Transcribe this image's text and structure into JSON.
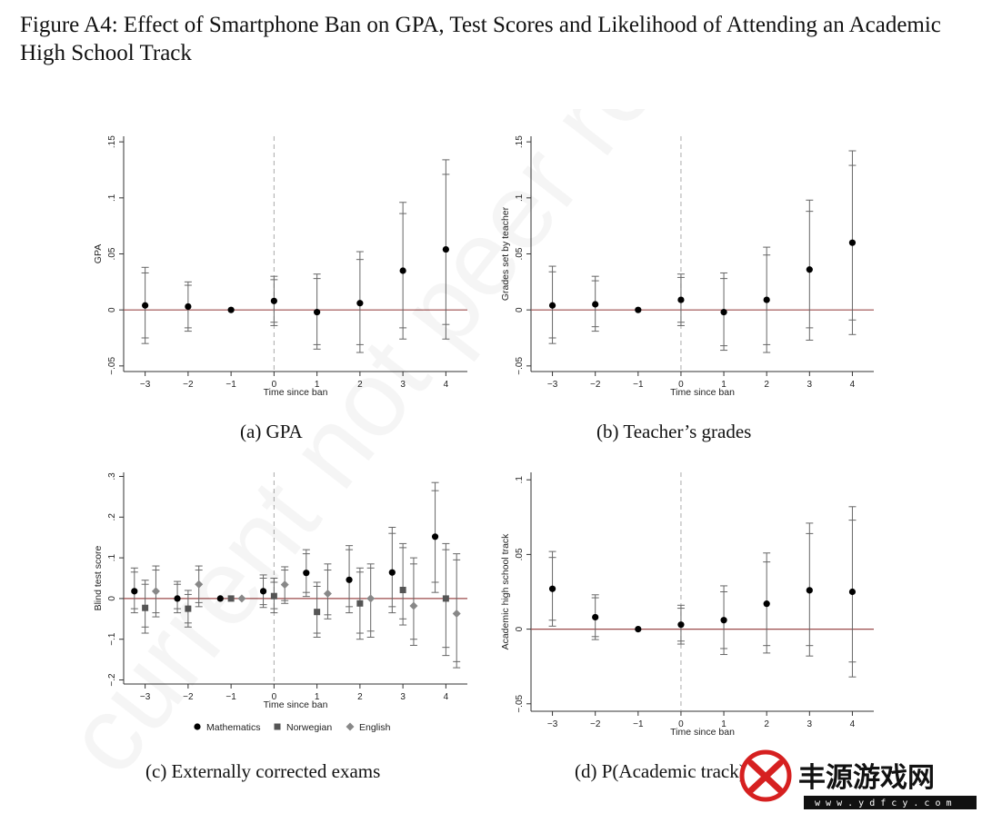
{
  "figure": {
    "title": "Figure A4: Effect of Smartphone Ban on GPA, Test Scores and Likelihood of Attending an Academic High School Track",
    "watermark": "current not peer review",
    "zero_line_color": "#9b4b4b",
    "series_colors": {
      "Mathematics": "#000000",
      "Norwegian": "#555555",
      "English": "#888888"
    }
  },
  "chart_data": [
    {
      "type": "scatter",
      "caption": "(a) GPA",
      "xlabel": "Time since ban",
      "ylabel": "GPA",
      "x_ticks": [
        -3,
        -2,
        -1,
        0,
        1,
        2,
        3,
        4
      ],
      "x_tick_labels": [
        "−3",
        "−2",
        "−1",
        "0",
        "1",
        "2",
        "3",
        "4"
      ],
      "y_ticks": [
        -0.05,
        0,
        0.05,
        0.1,
        0.15
      ],
      "y_tick_labels": [
        "−.05",
        "0",
        ".05",
        ".1",
        ".15"
      ],
      "ylim": [
        -0.055,
        0.155
      ],
      "xlim": [
        -3.5,
        4.5
      ],
      "vline_x": 0,
      "series": [
        {
          "x": [
            -3,
            -2,
            -1,
            0,
            1,
            2,
            3,
            4
          ],
          "y": [
            0.004,
            0.003,
            0.0,
            0.008,
            -0.002,
            0.006,
            0.035,
            0.054
          ],
          "ci90_low": [
            -0.025,
            -0.016,
            0.0,
            -0.011,
            -0.031,
            -0.031,
            -0.016,
            -0.013
          ],
          "ci90_high": [
            0.033,
            0.022,
            0.0,
            0.027,
            0.028,
            0.045,
            0.086,
            0.121
          ],
          "ci95_low": [
            -0.03,
            -0.019,
            0.0,
            -0.014,
            -0.035,
            -0.038,
            -0.026,
            -0.026
          ],
          "ci95_high": [
            0.038,
            0.025,
            0.0,
            0.03,
            0.032,
            0.052,
            0.096,
            0.134
          ]
        }
      ]
    },
    {
      "type": "scatter",
      "caption": "(b) Teacher’s grades",
      "xlabel": "Time since ban",
      "ylabel": "Grades set by teacher",
      "x_ticks": [
        -3,
        -2,
        -1,
        0,
        1,
        2,
        3,
        4
      ],
      "x_tick_labels": [
        "−3",
        "−2",
        "−1",
        "0",
        "1",
        "2",
        "3",
        "4"
      ],
      "y_ticks": [
        -0.05,
        0,
        0.05,
        0.1,
        0.15
      ],
      "y_tick_labels": [
        "−.05",
        "0",
        ".05",
        ".1",
        ".15"
      ],
      "ylim": [
        -0.055,
        0.155
      ],
      "xlim": [
        -3.5,
        4.5
      ],
      "vline_x": 0,
      "series": [
        {
          "x": [
            -3,
            -2,
            -1,
            0,
            1,
            2,
            3,
            4
          ],
          "y": [
            0.004,
            0.005,
            0.0,
            0.009,
            -0.002,
            0.009,
            0.036,
            0.06
          ],
          "ci90_low": [
            -0.025,
            -0.015,
            0.0,
            -0.011,
            -0.032,
            -0.031,
            -0.016,
            -0.009
          ],
          "ci90_high": [
            0.034,
            0.026,
            0.0,
            0.029,
            0.028,
            0.049,
            0.088,
            0.129
          ],
          "ci95_low": [
            -0.03,
            -0.019,
            0.0,
            -0.014,
            -0.036,
            -0.038,
            -0.027,
            -0.022
          ],
          "ci95_high": [
            0.039,
            0.03,
            0.0,
            0.032,
            0.033,
            0.056,
            0.098,
            0.142
          ]
        }
      ]
    },
    {
      "type": "scatter",
      "caption": "(c) Externally corrected exams",
      "xlabel": "Time since ban",
      "ylabel": "Blind test score",
      "x_ticks": [
        -3,
        -2,
        -1,
        0,
        1,
        2,
        3,
        4
      ],
      "x_tick_labels": [
        "−3",
        "−2",
        "−1",
        "0",
        "1",
        "2",
        "3",
        "4"
      ],
      "y_ticks": [
        -0.2,
        -0.1,
        0,
        0.1,
        0.2,
        0.3
      ],
      "y_tick_labels": [
        "−.2",
        "−.1",
        "0",
        ".1",
        ".2",
        ".3"
      ],
      "ylim": [
        -0.21,
        0.31
      ],
      "xlim": [
        -3.5,
        4.5
      ],
      "vline_x": 0,
      "legend": [
        "Mathematics",
        "Norwegian",
        "English"
      ],
      "legend_position": "bottom",
      "series": [
        {
          "name": "Mathematics",
          "marker": "circle",
          "x_offset": -0.25,
          "x": [
            -3,
            -2,
            -1,
            0,
            1,
            2,
            3,
            4
          ],
          "y": [
            0.018,
            0.0,
            0.0,
            0.018,
            0.063,
            0.046,
            0.064,
            0.152
          ],
          "ci90_low": [
            -0.025,
            -0.025,
            0.0,
            -0.015,
            0.015,
            -0.02,
            -0.02,
            0.04
          ],
          "ci90_high": [
            0.065,
            0.035,
            0.0,
            0.05,
            0.11,
            0.12,
            0.16,
            0.265
          ],
          "ci95_low": [
            -0.035,
            -0.035,
            0.0,
            -0.022,
            0.005,
            -0.035,
            -0.035,
            0.015
          ],
          "ci95_high": [
            0.075,
            0.042,
            0.0,
            0.058,
            0.12,
            0.13,
            0.175,
            0.285
          ]
        },
        {
          "name": "Norwegian",
          "marker": "square",
          "x_offset": 0,
          "x": [
            -3,
            -2,
            -1,
            0,
            1,
            2,
            3,
            4
          ],
          "y": [
            -0.023,
            -0.025,
            0.0,
            0.006,
            -0.033,
            -0.012,
            0.021,
            0.0
          ],
          "ci90_low": [
            -0.07,
            -0.06,
            0.0,
            -0.025,
            -0.085,
            -0.085,
            -0.05,
            -0.12
          ],
          "ci90_high": [
            0.035,
            0.01,
            0.0,
            0.04,
            0.03,
            0.065,
            0.125,
            0.12
          ],
          "ci95_low": [
            -0.085,
            -0.07,
            0.0,
            -0.035,
            -0.095,
            -0.1,
            -0.065,
            -0.14
          ],
          "ci95_high": [
            0.045,
            0.02,
            0.0,
            0.05,
            0.04,
            0.075,
            0.135,
            0.135
          ]
        },
        {
          "name": "English",
          "marker": "diamond",
          "x_offset": 0.25,
          "x": [
            -3,
            -2,
            -1,
            0,
            1,
            2,
            3,
            4
          ],
          "y": [
            0.018,
            0.035,
            0.0,
            0.034,
            0.012,
            0.0,
            -0.018,
            -0.037
          ],
          "ci90_low": [
            -0.035,
            -0.01,
            0.0,
            -0.005,
            -0.04,
            -0.08,
            -0.1,
            -0.155
          ],
          "ci90_high": [
            0.07,
            0.07,
            0.0,
            0.07,
            0.07,
            0.075,
            0.085,
            0.095
          ],
          "ci95_low": [
            -0.045,
            -0.02,
            0.0,
            -0.012,
            -0.05,
            -0.095,
            -0.115,
            -0.17
          ],
          "ci95_high": [
            0.08,
            0.08,
            0.0,
            0.078,
            0.085,
            0.085,
            0.1,
            0.11
          ]
        }
      ]
    },
    {
      "type": "scatter",
      "caption": "(d) P(Academic track)",
      "xlabel": "Time since ban",
      "ylabel": "Academic high school track",
      "x_ticks": [
        -3,
        -2,
        -1,
        0,
        1,
        2,
        3,
        4
      ],
      "x_tick_labels": [
        "−3",
        "−2",
        "−1",
        "0",
        "1",
        "2",
        "3",
        "4"
      ],
      "y_ticks": [
        -0.05,
        0,
        0.05,
        0.1
      ],
      "y_tick_labels": [
        "−.05",
        "0",
        ".05",
        ".1"
      ],
      "ylim": [
        -0.055,
        0.105
      ],
      "xlim": [
        -3.5,
        4.5
      ],
      "vline_x": 0,
      "series": [
        {
          "x": [
            -3,
            -2,
            -1,
            0,
            1,
            2,
            3,
            4
          ],
          "y": [
            0.027,
            0.008,
            0.0,
            0.003,
            0.006,
            0.017,
            0.026,
            0.025
          ],
          "ci90_low": [
            0.006,
            -0.005,
            0.0,
            -0.008,
            -0.013,
            -0.011,
            -0.011,
            -0.022
          ],
          "ci90_high": [
            0.048,
            0.021,
            0.0,
            0.014,
            0.025,
            0.045,
            0.064,
            0.073
          ],
          "ci95_low": [
            0.002,
            -0.007,
            0.0,
            -0.01,
            -0.017,
            -0.016,
            -0.018,
            -0.032
          ],
          "ci95_high": [
            0.052,
            0.023,
            0.0,
            0.016,
            0.029,
            0.051,
            0.071,
            0.082
          ]
        }
      ]
    }
  ],
  "logo": {
    "text": "丰源游戏网",
    "url_text": "w w w . y d f c y . c o m",
    "accent": "#d62020"
  }
}
